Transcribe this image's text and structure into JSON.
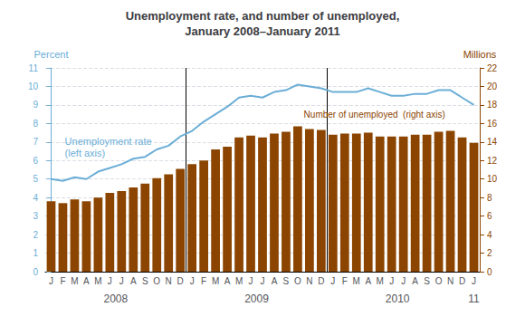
{
  "chart_data": {
    "type": "bar",
    "title": "Unemployment rate, and number of unemployed,\nJanuary 2008–January 2011",
    "ylabel": "Percent",
    "y2label": "Millions",
    "categories": [
      "J",
      "F",
      "M",
      "A",
      "M",
      "J",
      "J",
      "A",
      "S",
      "O",
      "N",
      "D",
      "J",
      "F",
      "M",
      "A",
      "M",
      "J",
      "J",
      "A",
      "S",
      "O",
      "N",
      "D",
      "J",
      "F",
      "M",
      "A",
      "M",
      "J",
      "J",
      "A",
      "S",
      "O",
      "N",
      "D",
      "J"
    ],
    "year_labels": [
      "2008",
      "2009",
      "2010",
      "11"
    ],
    "series": [
      {
        "type": "bar",
        "axis": "y2",
        "color": "#8B4500",
        "values": [
          7.6,
          7.4,
          7.8,
          7.6,
          8.0,
          8.5,
          8.7,
          9.1,
          9.5,
          10.1,
          10.5,
          11.1,
          11.6,
          12.0,
          13.2,
          13.5,
          14.5,
          14.7,
          14.5,
          14.9,
          15.1,
          15.7,
          15.4,
          15.3,
          14.8,
          14.9,
          14.9,
          15.0,
          14.6,
          14.6,
          14.6,
          14.8,
          14.8,
          15.1,
          15.2,
          14.5,
          13.9
        ]
      },
      {
        "type": "line",
        "axis": "y",
        "color": "#6baed6",
        "values": [
          5.0,
          4.9,
          5.1,
          5.0,
          5.4,
          5.6,
          5.8,
          6.1,
          6.2,
          6.6,
          6.8,
          7.3,
          7.6,
          8.1,
          8.5,
          8.9,
          9.4,
          9.5,
          9.4,
          9.7,
          9.8,
          10.1,
          10.0,
          9.9,
          9.7,
          9.7,
          9.7,
          9.9,
          9.7,
          9.5,
          9.5,
          9.6,
          9.6,
          9.8,
          9.8,
          9.4,
          9.0
        ]
      }
    ],
    "annotations": [
      {
        "text": "Unemployment rate\n(left axis)",
        "color": "#6baed6"
      },
      {
        "text": "Number of unemployed  (right axis)",
        "color": "#8B4500"
      }
    ],
    "ylim": [
      0,
      11
    ],
    "yticks": [
      0,
      1,
      2,
      3,
      4,
      5,
      6,
      7,
      8,
      9,
      10,
      11
    ],
    "y2lim": [
      0,
      22
    ],
    "y2ticks": [
      0,
      2,
      4,
      6,
      8,
      10,
      12,
      14,
      16,
      18,
      20,
      22
    ],
    "grid": true
  }
}
